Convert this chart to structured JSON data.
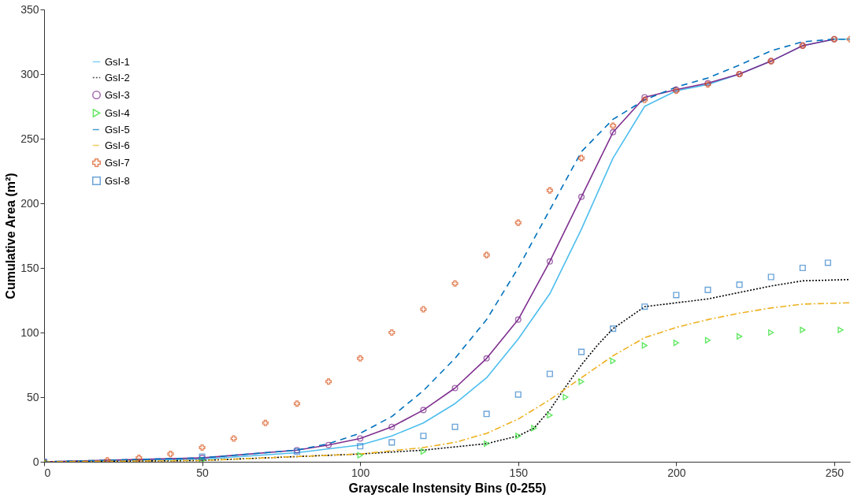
{
  "chart_data": {
    "type": "line",
    "xlabel": "Grayscale Instensity Bins (0-255)",
    "ylabel": "Cumulative Area (m²)",
    "xlim": [
      0,
      255
    ],
    "ylim": [
      0,
      350
    ],
    "xticks": [
      0,
      50,
      100,
      150,
      200,
      250
    ],
    "yticks": [
      0,
      50,
      100,
      150,
      200,
      250,
      300,
      350
    ],
    "grid": false,
    "legend": "top left",
    "series": [
      {
        "name": "GsI-1",
        "color": "#4dbeee",
        "line_style": "solid",
        "marker": "none",
        "x": [
          0,
          50,
          80,
          100,
          110,
          120,
          130,
          140,
          150,
          160,
          170,
          180,
          190,
          200,
          210,
          220,
          230,
          240,
          250,
          255
        ],
        "values": [
          0,
          2,
          7,
          13,
          20,
          30,
          45,
          65,
          95,
          130,
          180,
          235,
          275,
          287,
          292,
          300,
          310,
          322,
          327,
          327
        ]
      },
      {
        "name": "GsI-2",
        "color": "#000000",
        "line_style": "dotted",
        "marker": "none",
        "x": [
          0,
          50,
          100,
          120,
          140,
          150,
          155,
          160,
          165,
          170,
          175,
          180,
          190,
          200,
          210,
          220,
          230,
          240,
          255
        ],
        "values": [
          0,
          1,
          6,
          9,
          14,
          20,
          26,
          40,
          58,
          75,
          90,
          103,
          120,
          123,
          126,
          131,
          136,
          140,
          141
        ]
      },
      {
        "name": "GsI-3",
        "color": "#7e2f8e",
        "line_style": "solid",
        "marker": "circle",
        "x": [
          0,
          50,
          80,
          90,
          100,
          110,
          120,
          130,
          140,
          150,
          160,
          170,
          180,
          190,
          200,
          210,
          220,
          230,
          240,
          250
        ],
        "values": [
          0,
          3,
          9,
          13,
          18,
          27,
          40,
          57,
          80,
          110,
          155,
          205,
          255,
          282,
          288,
          293,
          300,
          310,
          322,
          327
        ]
      },
      {
        "name": "GsI-4",
        "color": "#22dd22",
        "type": "scatter",
        "marker": "triangle",
        "x": [
          0,
          50,
          100,
          120,
          140,
          150,
          155,
          160,
          165,
          170,
          180,
          190,
          200,
          210,
          220,
          230,
          240,
          252
        ],
        "values": [
          0,
          1,
          5,
          8,
          14,
          20,
          26,
          36,
          50,
          62,
          78,
          90,
          92,
          94,
          97,
          100,
          102,
          102
        ]
      },
      {
        "name": "GsI-5",
        "color": "#0072bd",
        "line_style": "dashed",
        "marker": "none",
        "x": [
          0,
          50,
          80,
          90,
          100,
          110,
          120,
          130,
          140,
          150,
          160,
          170,
          180,
          190,
          200,
          210,
          220,
          230,
          240,
          250,
          255
        ],
        "values": [
          0,
          3,
          9,
          14,
          22,
          35,
          55,
          80,
          110,
          150,
          195,
          240,
          265,
          280,
          290,
          297,
          307,
          318,
          325,
          327,
          327
        ]
      },
      {
        "name": "GsI-6",
        "color": "#edb120",
        "line_style": "dashdot",
        "marker": "none",
        "x": [
          0,
          50,
          100,
          120,
          130,
          140,
          150,
          160,
          170,
          180,
          190,
          200,
          210,
          220,
          230,
          240,
          255
        ],
        "values": [
          0,
          1,
          6,
          11,
          15,
          22,
          33,
          48,
          65,
          82,
          96,
          104,
          110,
          115,
          119,
          122,
          123
        ]
      },
      {
        "name": "GsI-7",
        "color": "#d95319",
        "type": "scatter",
        "marker": "cross",
        "x": [
          0,
          20,
          30,
          40,
          50,
          60,
          70,
          80,
          90,
          100,
          110,
          120,
          130,
          140,
          150,
          160,
          170,
          180,
          190,
          200,
          210,
          220,
          230,
          240,
          250,
          255
        ],
        "values": [
          0,
          1,
          3,
          6,
          11,
          18,
          30,
          45,
          62,
          80,
          100,
          118,
          138,
          160,
          185,
          210,
          235,
          260,
          280,
          287,
          292,
          300,
          310,
          322,
          327,
          327
        ]
      },
      {
        "name": "GsI-8",
        "color": "#2f7fc8",
        "type": "scatter",
        "marker": "square",
        "x": [
          0,
          50,
          80,
          100,
          110,
          120,
          130,
          140,
          150,
          160,
          170,
          180,
          190,
          200,
          210,
          220,
          230,
          240,
          248
        ],
        "values": [
          0,
          4,
          8,
          12,
          15,
          20,
          27,
          37,
          52,
          68,
          85,
          103,
          120,
          129,
          133,
          137,
          143,
          150,
          154
        ]
      }
    ]
  }
}
